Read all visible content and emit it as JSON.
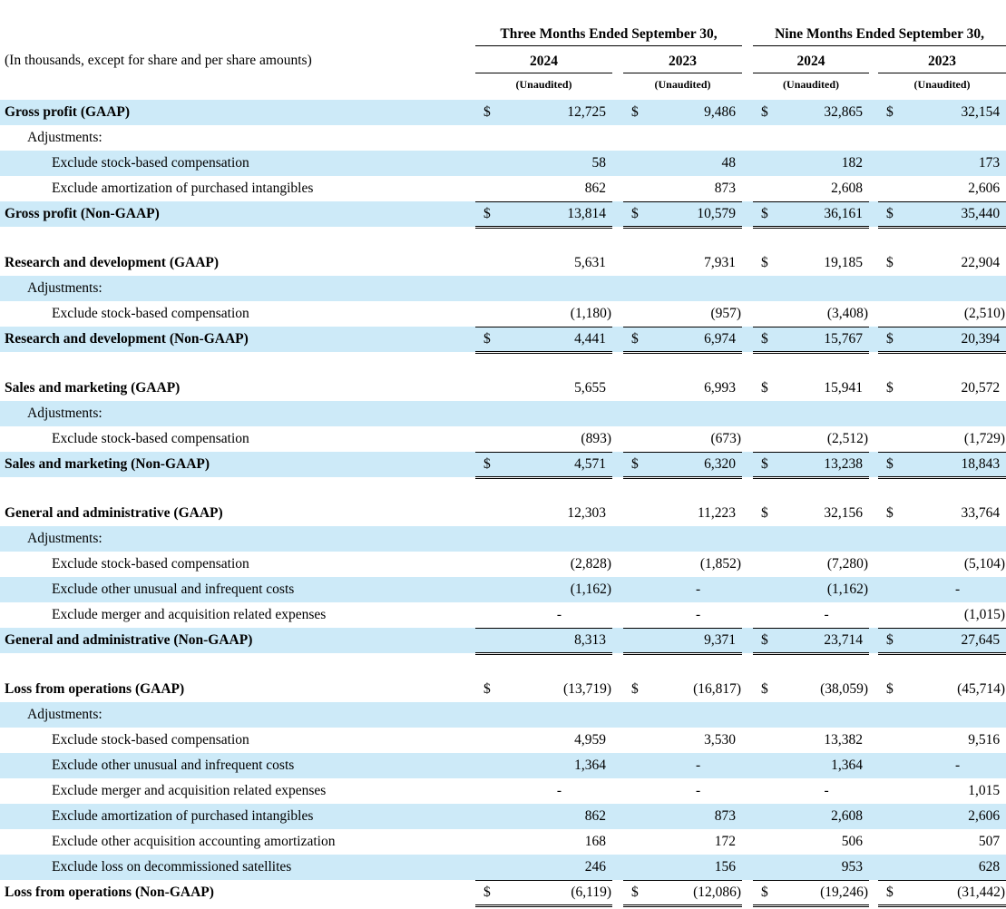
{
  "colors": {
    "row_highlight": "#cdeaf8",
    "text": "#000000"
  },
  "header": {
    "note": "(In thousands, except for share and per share amounts)",
    "unaudited": "(Unaudited)",
    "periods": [
      {
        "title": "Three Months Ended September 30,",
        "years": [
          "2024",
          "2023"
        ]
      },
      {
        "title": "Nine Months Ended September 30,",
        "years": [
          "2024",
          "2023"
        ]
      }
    ]
  },
  "rows": [
    {
      "kind": "section",
      "shaded": true,
      "label": "Gross profit (GAAP)",
      "cells": [
        "$",
        "12,725",
        "$",
        "9,486",
        "$",
        "32,865",
        "$",
        "32,154"
      ]
    },
    {
      "kind": "subhead",
      "shaded": false,
      "label": "Adjustments:"
    },
    {
      "kind": "item",
      "shaded": true,
      "label": "Exclude stock-based compensation",
      "cells": [
        "",
        "58",
        "",
        "48",
        "",
        "182",
        "",
        "173"
      ]
    },
    {
      "kind": "item",
      "shaded": false,
      "label": "Exclude amortization of purchased intangibles",
      "cells": [
        "",
        "862",
        "",
        "873",
        "",
        "2,608",
        "",
        "2,606"
      ],
      "rule_below": true
    },
    {
      "kind": "total",
      "shaded": true,
      "label": "Gross profit (Non-GAAP)",
      "cells": [
        "$",
        "13,814",
        "$",
        "10,579",
        "$",
        "36,161",
        "$",
        "35,440"
      ],
      "double_below": true
    },
    {
      "kind": "spacer"
    },
    {
      "kind": "section",
      "shaded": false,
      "label": "Research and development (GAAP)",
      "cells": [
        "",
        "5,631",
        "",
        "7,931",
        "$",
        "19,185",
        "$",
        "22,904"
      ]
    },
    {
      "kind": "subhead",
      "shaded": true,
      "label": "Adjustments:"
    },
    {
      "kind": "item",
      "shaded": false,
      "label": "Exclude stock-based compensation",
      "cells": [
        "",
        "(1,180)",
        "",
        "(957)",
        "",
        "(3,408)",
        "",
        "(2,510)"
      ],
      "rule_below": true
    },
    {
      "kind": "total",
      "shaded": true,
      "label": "Research and development (Non-GAAP)",
      "cells": [
        "$",
        "4,441",
        "$",
        "6,974",
        "$",
        "15,767",
        "$",
        "20,394"
      ],
      "double_below": true
    },
    {
      "kind": "spacer"
    },
    {
      "kind": "section",
      "shaded": false,
      "label": "Sales and marketing (GAAP)",
      "cells": [
        "",
        "5,655",
        "",
        "6,993",
        "$",
        "15,941",
        "$",
        "20,572"
      ]
    },
    {
      "kind": "subhead",
      "shaded": true,
      "label": "Adjustments:"
    },
    {
      "kind": "item",
      "shaded": false,
      "label": "Exclude stock-based compensation",
      "cells": [
        "",
        "(893)",
        "",
        "(673)",
        "",
        "(2,512)",
        "",
        "(1,729)"
      ],
      "rule_below": true
    },
    {
      "kind": "total",
      "shaded": true,
      "label": "Sales and marketing (Non-GAAP)",
      "cells": [
        "$",
        "4,571",
        "$",
        "6,320",
        "$",
        "13,238",
        "$",
        "18,843"
      ],
      "double_below": true
    },
    {
      "kind": "spacer"
    },
    {
      "kind": "section",
      "shaded": false,
      "label": "General and administrative (GAAP)",
      "cells": [
        "",
        "12,303",
        "",
        "11,223",
        "$",
        "32,156",
        "$",
        "33,764"
      ]
    },
    {
      "kind": "subhead",
      "shaded": true,
      "label": "Adjustments:"
    },
    {
      "kind": "item",
      "shaded": false,
      "label": "Exclude stock-based compensation",
      "cells": [
        "",
        "(2,828)",
        "",
        "(1,852)",
        "",
        "(7,280)",
        "",
        "(5,104)"
      ]
    },
    {
      "kind": "item",
      "shaded": true,
      "label": "Exclude other unusual and infrequent costs",
      "cells": [
        "",
        "(1,162)",
        "",
        "-",
        "",
        "(1,162)",
        "",
        "-"
      ]
    },
    {
      "kind": "item",
      "shaded": false,
      "label": "Exclude merger and acquisition related expenses",
      "cells": [
        "",
        "-",
        "",
        "-",
        "",
        "-",
        "",
        "(1,015)"
      ],
      "rule_below": true
    },
    {
      "kind": "total",
      "shaded": true,
      "label": "General and administrative (Non-GAAP)",
      "cells": [
        "",
        "8,313",
        "",
        "9,371",
        "$",
        "23,714",
        "$",
        "27,645"
      ],
      "double_below": true
    },
    {
      "kind": "spacer"
    },
    {
      "kind": "section",
      "shaded": false,
      "label": "Loss from operations (GAAP)",
      "cells": [
        "$",
        "(13,719)",
        "$",
        "(16,817)",
        "$",
        "(38,059)",
        "$",
        "(45,714)"
      ]
    },
    {
      "kind": "subhead",
      "shaded": true,
      "label": "Adjustments:"
    },
    {
      "kind": "item",
      "shaded": false,
      "label": "Exclude stock-based compensation",
      "cells": [
        "",
        "4,959",
        "",
        "3,530",
        "",
        "13,382",
        "",
        "9,516"
      ]
    },
    {
      "kind": "item",
      "shaded": true,
      "label": "Exclude other unusual and infrequent costs",
      "cells": [
        "",
        "1,364",
        "",
        "-",
        "",
        "1,364",
        "",
        "-"
      ]
    },
    {
      "kind": "item",
      "shaded": false,
      "label": "Exclude merger and acquisition related expenses",
      "cells": [
        "",
        "-",
        "",
        "-",
        "",
        "-",
        "",
        "1,015"
      ]
    },
    {
      "kind": "item",
      "shaded": true,
      "label": "Exclude amortization of purchased intangibles",
      "cells": [
        "",
        "862",
        "",
        "873",
        "",
        "2,608",
        "",
        "2,606"
      ]
    },
    {
      "kind": "item",
      "shaded": false,
      "label": "Exclude other acquisition accounting amortization",
      "cells": [
        "",
        "168",
        "",
        "172",
        "",
        "506",
        "",
        "507"
      ]
    },
    {
      "kind": "item",
      "shaded": true,
      "label": "Exclude loss on decommissioned satellites",
      "cells": [
        "",
        "246",
        "",
        "156",
        "",
        "953",
        "",
        "628"
      ],
      "rule_below": true
    },
    {
      "kind": "total",
      "shaded": false,
      "label": "Loss from operations (Non-GAAP)",
      "cells": [
        "$",
        "(6,119)",
        "$",
        "(12,086)",
        "$",
        "(19,246)",
        "$",
        "(31,442)"
      ],
      "double_below": true
    }
  ]
}
